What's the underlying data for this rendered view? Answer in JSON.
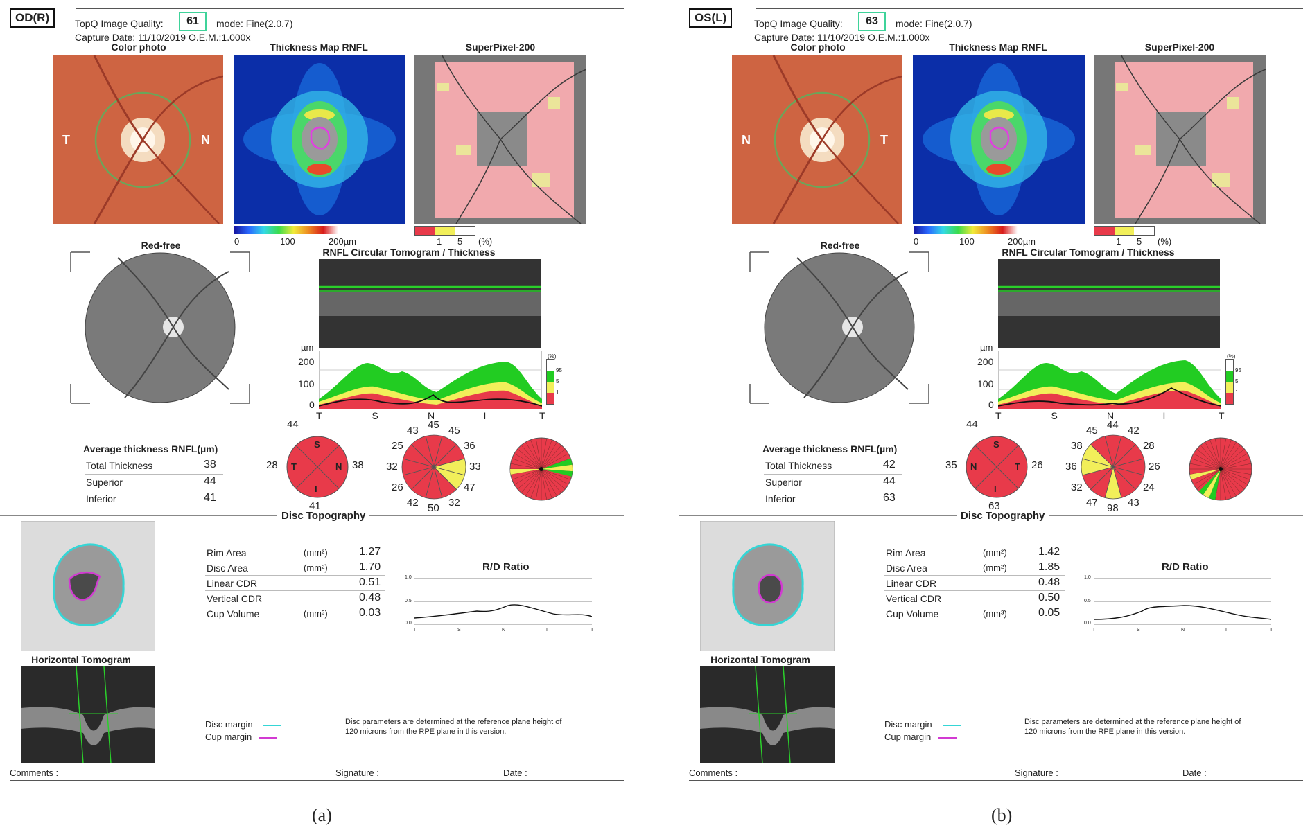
{
  "panels": [
    {
      "eye_label": "OD(R)",
      "quality_label": "TopQ Image Quality:",
      "quality_value": "61",
      "mode": "mode: Fine(2.0.7)",
      "capture": "Capture Date: 11/10/2019  O.E.M.:1.000x",
      "captions": {
        "color_photo": "Color photo",
        "thickness_map": "Thickness Map RNFL",
        "superpixel": "SuperPixel-200",
        "red_free": "Red-free",
        "tomogram": "RNFL Circular Tomogram / Thickness",
        "disc_topography": "Disc Topography",
        "rd_ratio": "R/D Ratio",
        "horizontal_tomogram": "Horizontal Tomogram"
      },
      "photo_left": "T",
      "photo_right": "N",
      "thickness_scale": [
        "0",
        "100",
        "200µm"
      ],
      "percent_scale": [
        "1",
        "5",
        "(%)"
      ],
      "profile_y_unit": "µm",
      "profile_y_ticks": [
        "200",
        "100",
        "0"
      ],
      "profile_x_ticks": [
        "T",
        "S",
        "N",
        "I",
        "T"
      ],
      "legend_pct": [
        "(%)",
        "95",
        "5",
        "1"
      ],
      "avg_title": "Average thickness RNFL(µm)",
      "avg_rows": [
        {
          "label": "Total Thickness",
          "value": "38"
        },
        {
          "label": "Superior",
          "value": "44"
        },
        {
          "label": "Inferior",
          "value": "41"
        }
      ],
      "quadrant": {
        "top": "44",
        "left": "28",
        "right": "38",
        "bottom": "41",
        "letters": {
          "top": "S",
          "left": "T",
          "right": "N",
          "bottom": "I"
        }
      },
      "clock": [
        "45",
        "45",
        "36",
        "33",
        "47",
        "32",
        "50",
        "42",
        "26",
        "32",
        "25",
        "43"
      ],
      "disc_rows": [
        {
          "label": "Rim Area",
          "unit": "(mm²)",
          "value": "1.27"
        },
        {
          "label": "Disc Area",
          "unit": "(mm²)",
          "value": "1.70"
        },
        {
          "label": "Linear CDR",
          "unit": "",
          "value": "0.51"
        },
        {
          "label": "Vertical CDR",
          "unit": "",
          "value": "0.48"
        },
        {
          "label": "Cup Volume",
          "unit": "(mm³)",
          "value": "0.03"
        }
      ],
      "rd_y_ticks": [
        "1.0",
        "0.5",
        "0.0"
      ],
      "rd_x_ticks": [
        "T",
        "S",
        "N",
        "I",
        "T"
      ],
      "disc_margin": "Disc margin",
      "cup_margin": "Cup margin",
      "note_line1": "Disc parameters are determined at the reference plane height of",
      "note_line2": "120 microns from the RPE plane in this version.",
      "comments": "Comments :",
      "signature": "Signature :",
      "date": "Date :",
      "fig_label": "(a)"
    },
    {
      "eye_label": "OS(L)",
      "quality_label": "TopQ Image Quality:",
      "quality_value": "63",
      "mode": "mode: Fine(2.0.7)",
      "capture": "Capture Date: 11/10/2019  O.E.M.:1.000x",
      "captions": {
        "color_photo": "Color photo",
        "thickness_map": "Thickness Map RNFL",
        "superpixel": "SuperPixel-200",
        "red_free": "Red-free",
        "tomogram": "RNFL Circular Tomogram / Thickness",
        "disc_topography": "Disc Topography",
        "rd_ratio": "R/D Ratio",
        "horizontal_tomogram": "Horizontal Tomogram"
      },
      "photo_left": "N",
      "photo_right": "T",
      "thickness_scale": [
        "0",
        "100",
        "200µm"
      ],
      "percent_scale": [
        "1",
        "5",
        "(%)"
      ],
      "profile_y_unit": "µm",
      "profile_y_ticks": [
        "200",
        "100",
        "0"
      ],
      "profile_x_ticks": [
        "T",
        "S",
        "N",
        "I",
        "T"
      ],
      "legend_pct": [
        "(%)",
        "95",
        "5",
        "1"
      ],
      "avg_title": "Average thickness RNFL(µm)",
      "avg_rows": [
        {
          "label": "Total Thickness",
          "value": "42"
        },
        {
          "label": "Superior",
          "value": "44"
        },
        {
          "label": "Inferior",
          "value": "63"
        }
      ],
      "quadrant": {
        "top": "44",
        "left": "35",
        "right": "26",
        "bottom": "63",
        "letters": {
          "top": "S",
          "left": "N",
          "right": "T",
          "bottom": "I"
        }
      },
      "clock": [
        "44",
        "42",
        "28",
        "26",
        "24",
        "43",
        "98",
        "47",
        "32",
        "36",
        "38",
        "45"
      ],
      "disc_rows": [
        {
          "label": "Rim Area",
          "unit": "(mm²)",
          "value": "1.42"
        },
        {
          "label": "Disc Area",
          "unit": "(mm²)",
          "value": "1.85"
        },
        {
          "label": "Linear CDR",
          "unit": "",
          "value": "0.48"
        },
        {
          "label": "Vertical CDR",
          "unit": "",
          "value": "0.50"
        },
        {
          "label": "Cup Volume",
          "unit": "(mm³)",
          "value": "0.05"
        }
      ],
      "rd_y_ticks": [
        "1.0",
        "0.5",
        "0.0"
      ],
      "rd_x_ticks": [
        "T",
        "S",
        "N",
        "I",
        "T"
      ],
      "disc_margin": "Disc margin",
      "cup_margin": "Cup margin",
      "note_line1": "Disc parameters are determined at the reference plane height of",
      "note_line2": "120 microns from the RPE plane in this version.",
      "comments": "Comments :",
      "signature": "Signature :",
      "date": "Date :",
      "fig_label": "(b)"
    }
  ],
  "colors": {
    "quality_box": "#3fd39a",
    "normal_green": "#22cc22",
    "borderline_yellow": "#f2ef5a",
    "outside_red": "#e83a4a",
    "disc_margin": "#35d6d6",
    "cup_margin": "#d23ad2"
  }
}
